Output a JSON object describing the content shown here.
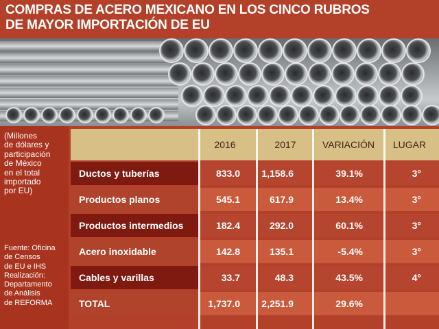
{
  "header": {
    "title_line1": "COMPRAS DE ACERO MEXICANO EN LOS CINCO RUBROS",
    "title_line2": "DE MAYOR IMPORTACIÓN DE EU"
  },
  "sidebar": {
    "units_note": [
      "(Millones",
      "de dólares y",
      "participación",
      "de México",
      "en el total",
      "importado",
      "por EU)"
    ],
    "source_note": [
      "Fuente: Oficina",
      "de Censos",
      "de EU e IHS",
      "Realización:",
      "Departamento",
      "de Análisis",
      "de REFORMA"
    ]
  },
  "colors": {
    "background": "#b3412a",
    "header_band": "#d8bf86",
    "row_dark": "#7e1a10",
    "row_mid": "#b0432c",
    "row_light": "#c95a3b"
  },
  "chart_data": {
    "type": "table",
    "columns": [
      "2016",
      "2017",
      "VARIACIÓN",
      "LUGAR"
    ],
    "rows": [
      {
        "label": "Ductos y tuberías",
        "values": [
          "833.0",
          "1,158.6",
          "39.1%",
          "3°"
        ]
      },
      {
        "label": "Productos planos",
        "values": [
          "545.1",
          "617.9",
          "13.4%",
          "3°"
        ]
      },
      {
        "label": "Productos intermedios",
        "values": [
          "182.4",
          "292.0",
          "60.1%",
          "3°"
        ]
      },
      {
        "label": "Acero inoxidable",
        "values": [
          "142.8",
          "135.1",
          "-5.4%",
          "3°"
        ]
      },
      {
        "label": "Cables y varillas",
        "values": [
          "33.7",
          "48.3",
          "43.5%",
          "4°"
        ]
      },
      {
        "label": "TOTAL",
        "values": [
          "1,737.0",
          "2,251.9",
          "29.6%",
          ""
        ]
      }
    ]
  }
}
